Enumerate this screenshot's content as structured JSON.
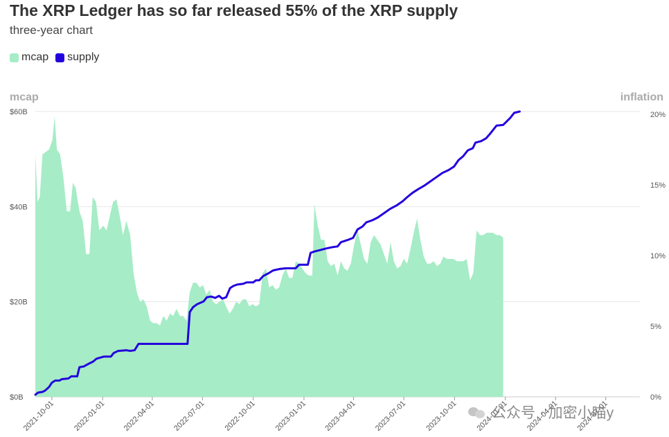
{
  "header": {
    "title": "The XRP Ledger has so far released 55% of the XRP supply",
    "subtitle": "three-year chart"
  },
  "watermark": {
    "text": "公众号 · 加密小喵y"
  },
  "chart_data": {
    "type": "area+line",
    "title": "The XRP Ledger has so far released 55% of the XRP supply",
    "subtitle": "three-year chart",
    "legend": {
      "placement": "top-left",
      "entries": [
        {
          "name": "mcap",
          "color": "#a6ecc6"
        },
        {
          "name": "supply",
          "color": "#2200dd"
        }
      ]
    },
    "y_left": {
      "title": "mcap",
      "ticks": [
        "$0B",
        "$20B",
        "$40B",
        "$60B"
      ],
      "tick_values": [
        0,
        20,
        40,
        60
      ],
      "range": [
        0,
        60
      ]
    },
    "y_right": {
      "title": "inflation",
      "ticks": [
        "0%",
        "5%",
        "10%",
        "15%",
        "20%"
      ],
      "tick_values": [
        0,
        5,
        10,
        15,
        20
      ],
      "range": [
        0,
        20.2
      ]
    },
    "x_axis": {
      "type": "date",
      "range": [
        "2021-09-01",
        "2024-09-01"
      ],
      "ticks": [
        "2021-10-01",
        "2022-01-01",
        "2022-04-01",
        "2022-07-01",
        "2022-10-01",
        "2023-01-01",
        "2023-04-01",
        "2023-07-01",
        "2023-10-01",
        "2024-01-01",
        "2024-04-01",
        "2024-07-01"
      ]
    },
    "grid": {
      "horizontal": true,
      "vertical": false
    },
    "series": [
      {
        "name": "mcap",
        "kind": "area",
        "axis": "left",
        "color": "#a6ecc6",
        "points": [
          [
            "2021-09-01",
            51
          ],
          [
            "2021-09-05",
            41
          ],
          [
            "2021-09-09",
            42
          ],
          [
            "2021-09-14",
            51
          ],
          [
            "2021-09-20",
            51.5
          ],
          [
            "2021-09-26",
            52
          ],
          [
            "2021-10-02",
            54
          ],
          [
            "2021-10-06",
            59
          ],
          [
            "2021-10-10",
            52
          ],
          [
            "2021-10-16",
            51
          ],
          [
            "2021-10-22",
            46
          ],
          [
            "2021-10-28",
            39
          ],
          [
            "2021-11-03",
            39
          ],
          [
            "2021-11-08",
            45
          ],
          [
            "2021-11-13",
            44
          ],
          [
            "2021-11-20",
            39
          ],
          [
            "2021-11-26",
            37
          ],
          [
            "2021-12-02",
            30
          ],
          [
            "2021-12-08",
            30
          ],
          [
            "2021-12-14",
            42
          ],
          [
            "2021-12-20",
            41
          ],
          [
            "2021-12-26",
            35
          ],
          [
            "2022-01-02",
            36
          ],
          [
            "2022-01-08",
            35
          ],
          [
            "2022-01-14",
            38
          ],
          [
            "2022-01-20",
            41
          ],
          [
            "2022-01-26",
            41.5
          ],
          [
            "2022-02-01",
            38
          ],
          [
            "2022-02-07",
            34
          ],
          [
            "2022-02-13",
            37
          ],
          [
            "2022-02-20",
            34
          ],
          [
            "2022-02-26",
            26
          ],
          [
            "2022-03-04",
            22
          ],
          [
            "2022-03-10",
            20
          ],
          [
            "2022-03-16",
            20.5
          ],
          [
            "2022-03-22",
            19
          ],
          [
            "2022-03-28",
            16
          ],
          [
            "2022-04-03",
            15.5
          ],
          [
            "2022-04-09",
            15.5
          ],
          [
            "2022-04-15",
            15
          ],
          [
            "2022-04-21",
            17
          ],
          [
            "2022-04-27",
            16
          ],
          [
            "2022-05-03",
            17.5
          ],
          [
            "2022-05-09",
            17
          ],
          [
            "2022-05-15",
            18.5
          ],
          [
            "2022-05-21",
            17
          ],
          [
            "2022-05-27",
            17
          ],
          [
            "2022-06-02",
            16
          ],
          [
            "2022-06-08",
            22
          ],
          [
            "2022-06-14",
            24
          ],
          [
            "2022-06-20",
            24
          ],
          [
            "2022-06-26",
            23
          ],
          [
            "2022-07-02",
            23.5
          ],
          [
            "2022-07-08",
            21.5
          ],
          [
            "2022-07-14",
            22.5
          ],
          [
            "2022-07-20",
            20
          ],
          [
            "2022-07-26",
            19.5
          ],
          [
            "2022-08-01",
            20
          ],
          [
            "2022-08-07",
            20.5
          ],
          [
            "2022-08-13",
            19
          ],
          [
            "2022-08-19",
            17.5
          ],
          [
            "2022-08-25",
            18.5
          ],
          [
            "2022-08-31",
            20
          ],
          [
            "2022-09-06",
            19.5
          ],
          [
            "2022-09-12",
            20.5
          ],
          [
            "2022-09-18",
            20.5
          ],
          [
            "2022-09-24",
            19
          ],
          [
            "2022-09-30",
            19.5
          ],
          [
            "2022-10-06",
            19
          ],
          [
            "2022-10-12",
            19.5
          ],
          [
            "2022-10-18",
            26
          ],
          [
            "2022-10-24",
            27
          ],
          [
            "2022-10-30",
            23
          ],
          [
            "2022-11-05",
            23.5
          ],
          [
            "2022-11-11",
            22.5
          ],
          [
            "2022-11-17",
            23
          ],
          [
            "2022-11-23",
            25.5
          ],
          [
            "2022-11-29",
            27
          ],
          [
            "2022-12-05",
            25
          ],
          [
            "2022-12-11",
            25
          ],
          [
            "2022-12-17",
            28.5
          ],
          [
            "2022-12-23",
            28
          ],
          [
            "2022-12-29",
            27
          ],
          [
            "2023-01-04",
            26
          ],
          [
            "2023-01-10",
            25.5
          ],
          [
            "2023-01-16",
            25.5
          ],
          [
            "2023-01-20",
            40.5
          ],
          [
            "2023-01-26",
            36
          ],
          [
            "2023-02-01",
            33
          ],
          [
            "2023-02-07",
            33
          ],
          [
            "2023-02-13",
            28.5
          ],
          [
            "2023-02-19",
            27.5
          ],
          [
            "2023-02-25",
            28
          ],
          [
            "2023-03-03",
            25.5
          ],
          [
            "2023-03-09",
            28.5
          ],
          [
            "2023-03-15",
            27
          ],
          [
            "2023-03-21",
            26.5
          ],
          [
            "2023-03-27",
            28
          ],
          [
            "2023-04-02",
            32
          ],
          [
            "2023-04-08",
            35
          ],
          [
            "2023-04-14",
            32
          ],
          [
            "2023-04-20",
            29
          ],
          [
            "2023-04-26",
            28
          ],
          [
            "2023-05-02",
            32.5
          ],
          [
            "2023-05-08",
            34
          ],
          [
            "2023-05-14",
            33
          ],
          [
            "2023-05-20",
            32
          ],
          [
            "2023-05-26",
            30
          ],
          [
            "2023-06-01",
            28
          ],
          [
            "2023-06-07",
            32.5
          ],
          [
            "2023-06-13",
            28.5
          ],
          [
            "2023-06-19",
            27
          ],
          [
            "2023-06-25",
            27.5
          ],
          [
            "2023-07-01",
            29
          ],
          [
            "2023-07-07",
            28
          ],
          [
            "2023-07-13",
            31
          ],
          [
            "2023-07-19",
            34.5
          ],
          [
            "2023-07-25",
            37.5
          ],
          [
            "2023-07-31",
            33
          ],
          [
            "2023-08-06",
            29.5
          ],
          [
            "2023-08-12",
            28
          ],
          [
            "2023-08-18",
            28
          ],
          [
            "2023-08-24",
            28.5
          ],
          [
            "2023-08-30",
            27.5
          ],
          [
            "2023-09-05",
            28
          ],
          [
            "2023-09-11",
            29.5
          ],
          [
            "2023-09-17",
            29
          ],
          [
            "2023-09-23",
            29
          ],
          [
            "2023-09-29",
            29
          ],
          [
            "2023-10-05",
            28.5
          ],
          [
            "2023-10-11",
            28.5
          ],
          [
            "2023-10-17",
            28.5
          ],
          [
            "2023-10-23",
            29
          ],
          [
            "2023-10-29",
            24.5
          ],
          [
            "2023-11-04",
            26
          ],
          [
            "2023-11-10",
            35
          ],
          [
            "2023-11-16",
            34
          ],
          [
            "2023-11-22",
            34
          ],
          [
            "2023-11-28",
            34.5
          ],
          [
            "2023-12-04",
            34.5
          ],
          [
            "2023-12-10",
            34.5
          ],
          [
            "2023-12-16",
            34
          ],
          [
            "2023-12-22",
            34
          ],
          [
            "2023-12-28",
            33.5
          ]
        ]
      },
      {
        "name": "supply",
        "kind": "line",
        "axis": "right",
        "color": "#2200dd",
        "points": [
          [
            "2021-09-01",
            0.15
          ],
          [
            "2021-09-06",
            0.3
          ],
          [
            "2021-09-14",
            0.35
          ],
          [
            "2021-09-19",
            0.45
          ],
          [
            "2021-09-26",
            0.7
          ],
          [
            "2021-10-01",
            1.0
          ],
          [
            "2021-10-07",
            1.15
          ],
          [
            "2021-10-15",
            1.15
          ],
          [
            "2021-10-19",
            1.25
          ],
          [
            "2021-10-31",
            1.3
          ],
          [
            "2021-11-05",
            1.45
          ],
          [
            "2021-11-16",
            1.45
          ],
          [
            "2021-11-20",
            2.1
          ],
          [
            "2021-11-28",
            2.15
          ],
          [
            "2021-12-07",
            2.35
          ],
          [
            "2021-12-15",
            2.5
          ],
          [
            "2021-12-21",
            2.7
          ],
          [
            "2022-01-03",
            2.85
          ],
          [
            "2022-01-16",
            2.85
          ],
          [
            "2022-01-21",
            3.1
          ],
          [
            "2022-01-29",
            3.25
          ],
          [
            "2022-02-13",
            3.3
          ],
          [
            "2022-02-20",
            3.25
          ],
          [
            "2022-02-28",
            3.3
          ],
          [
            "2022-03-07",
            3.75
          ],
          [
            "2022-06-04",
            3.75
          ],
          [
            "2022-06-08",
            6.0
          ],
          [
            "2022-06-14",
            6.35
          ],
          [
            "2022-06-21",
            6.55
          ],
          [
            "2022-07-03",
            6.75
          ],
          [
            "2022-07-09",
            7.05
          ],
          [
            "2022-07-17",
            7.1
          ],
          [
            "2022-07-24",
            7.0
          ],
          [
            "2022-07-31",
            7.15
          ],
          [
            "2022-08-06",
            6.95
          ],
          [
            "2022-08-13",
            7.05
          ],
          [
            "2022-08-20",
            7.7
          ],
          [
            "2022-08-26",
            7.85
          ],
          [
            "2022-09-02",
            7.95
          ],
          [
            "2022-09-13",
            8.0
          ],
          [
            "2022-09-19",
            8.1
          ],
          [
            "2022-10-01",
            8.1
          ],
          [
            "2022-10-06",
            8.25
          ],
          [
            "2022-10-12",
            8.25
          ],
          [
            "2022-10-19",
            8.55
          ],
          [
            "2022-10-29",
            8.75
          ],
          [
            "2022-11-06",
            8.95
          ],
          [
            "2022-11-18",
            9.05
          ],
          [
            "2022-11-29",
            9.1
          ],
          [
            "2022-12-17",
            9.1
          ],
          [
            "2022-12-23",
            9.35
          ],
          [
            "2023-01-08",
            9.35
          ],
          [
            "2023-01-13",
            10.2
          ],
          [
            "2023-01-21",
            10.3
          ],
          [
            "2023-01-31",
            10.4
          ],
          [
            "2023-02-10",
            10.5
          ],
          [
            "2023-02-22",
            10.6
          ],
          [
            "2023-03-03",
            10.65
          ],
          [
            "2023-03-09",
            10.95
          ],
          [
            "2023-03-21",
            11.1
          ],
          [
            "2023-03-31",
            11.25
          ],
          [
            "2023-04-08",
            11.85
          ],
          [
            "2023-04-17",
            12.05
          ],
          [
            "2023-04-24",
            12.35
          ],
          [
            "2023-05-05",
            12.5
          ],
          [
            "2023-05-15",
            12.7
          ],
          [
            "2023-05-26",
            13.0
          ],
          [
            "2023-06-06",
            13.3
          ],
          [
            "2023-06-18",
            13.55
          ],
          [
            "2023-06-29",
            13.85
          ],
          [
            "2023-07-06",
            14.1
          ],
          [
            "2023-07-17",
            14.45
          ],
          [
            "2023-07-27",
            14.7
          ],
          [
            "2023-08-07",
            14.95
          ],
          [
            "2023-08-18",
            15.25
          ],
          [
            "2023-08-29",
            15.55
          ],
          [
            "2023-09-09",
            15.85
          ],
          [
            "2023-09-20",
            16.05
          ],
          [
            "2023-09-30",
            16.3
          ],
          [
            "2023-10-08",
            16.75
          ],
          [
            "2023-10-17",
            17.05
          ],
          [
            "2023-10-25",
            17.45
          ],
          [
            "2023-11-03",
            17.6
          ],
          [
            "2023-11-08",
            18.0
          ],
          [
            "2023-11-18",
            18.1
          ],
          [
            "2023-11-27",
            18.3
          ],
          [
            "2023-12-05",
            18.65
          ],
          [
            "2023-12-16",
            19.2
          ],
          [
            "2023-12-28",
            19.25
          ],
          [
            "2024-01-10",
            19.75
          ],
          [
            "2024-01-17",
            20.1
          ],
          [
            "2024-01-27",
            20.2
          ]
        ]
      }
    ]
  }
}
